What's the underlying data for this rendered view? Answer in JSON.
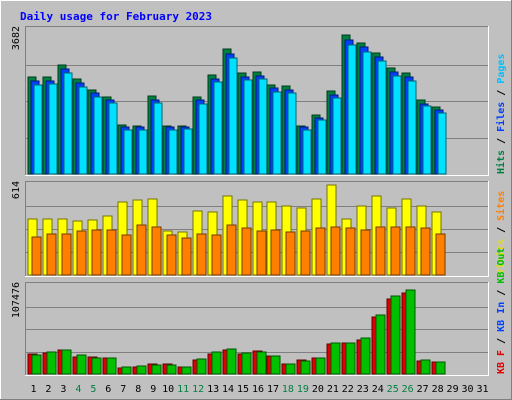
{
  "chart_data": {
    "type": "bar",
    "title": "Daily usage for February 2023",
    "x_labels": [
      "1",
      "2",
      "3",
      "4",
      "5",
      "6",
      "7",
      "8",
      "9",
      "10",
      "11",
      "12",
      "13",
      "14",
      "15",
      "16",
      "17",
      "18",
      "19",
      "20",
      "21",
      "22",
      "23",
      "24",
      "25",
      "26",
      "27",
      "28",
      "29",
      "30",
      "31"
    ],
    "weekend_days": [
      4,
      5,
      11,
      12,
      18,
      19,
      25,
      26
    ],
    "panels": [
      {
        "id": "hits",
        "max_label": "3682",
        "ymax": 3682,
        "axis_labels": [
          {
            "text": "Hits",
            "color": "#008040"
          },
          {
            "text": "Files",
            "color": "#0040ff"
          },
          {
            "text": "Pages",
            "color": "#00c0ff"
          }
        ],
        "series": [
          {
            "name": "Hits",
            "color": "#008040",
            "values": [
              2470,
              2480,
              2790,
              2420,
              2160,
              1980,
              1250,
              1240,
              1990,
              1240,
              1240,
              1970,
              2530,
              3200,
              2580,
              2600,
              2280,
              2240,
              1240,
              1500,
              2110,
              3550,
              3360,
              3100,
              2720,
              2580,
              1890,
              1710,
              0,
              0,
              0
            ]
          },
          {
            "name": "Files",
            "color": "#0040ff",
            "values": [
              2380,
              2390,
              2690,
              2320,
              2060,
              1890,
              1190,
              1190,
              1890,
              1190,
              1190,
              1880,
              2440,
              3080,
              2490,
              2510,
              2190,
              2150,
              1190,
              1440,
              2030,
              3420,
              3240,
              2990,
              2610,
              2480,
              1800,
              1630,
              0,
              0,
              0
            ]
          },
          {
            "name": "Pages",
            "color": "#00e0ff",
            "values": [
              2280,
              2300,
              2580,
              2230,
              1980,
              1810,
              1120,
              1130,
              1810,
              1130,
              1140,
              1800,
              2340,
              2960,
              2400,
              2420,
              2100,
              2070,
              1130,
              1380,
              1950,
              3300,
              3130,
              2890,
              2510,
              2380,
              1730,
              1570,
              0,
              0,
              0
            ]
          }
        ]
      },
      {
        "id": "visits",
        "max_label": "614",
        "ymax": 614,
        "axis_labels": [
          {
            "text": "Visits",
            "color": "#e0e000"
          },
          {
            "text": "Sites",
            "color": "#ff8000"
          }
        ],
        "series": [
          {
            "name": "Visits",
            "color": "#ffff00",
            "values": [
              380,
              380,
              380,
              370,
              375,
              400,
              500,
              510,
              520,
              300,
              290,
              440,
              430,
              540,
              510,
              500,
              500,
              470,
              460,
              520,
              614,
              380,
              470,
              540,
              460,
              520,
              470,
              430,
              0,
              0,
              0
            ]
          },
          {
            "name": "Sites",
            "color": "#ff8000",
            "values": [
              260,
              280,
              280,
              300,
              305,
              310,
              270,
              340,
              330,
              270,
              250,
              280,
              270,
              340,
              320,
              300,
              310,
              290,
              300,
              320,
              330,
              320,
              310,
              330,
              330,
              330,
              320,
              280,
              0,
              0,
              0
            ]
          }
        ]
      },
      {
        "id": "kbytes",
        "max_label": "107476",
        "ymax": 107476,
        "axis_labels": [
          {
            "text": "KB F",
            "color": "#e00000"
          },
          {
            "text": "KB In",
            "color": "#0040ff"
          },
          {
            "text": "KB Out",
            "color": "#00c000"
          }
        ],
        "series": [
          {
            "name": "KB F",
            "color": "#e00000",
            "values": [
              24000,
              26000,
              29000,
              21000,
              21000,
              20000,
              7000,
              9000,
              12000,
              12000,
              9000,
              17000,
              25000,
              29000,
              25000,
              28000,
              22000,
              12000,
              17000,
              20000,
              37000,
              38000,
              42000,
              70000,
              92000,
              99000,
              16000,
              15000,
              0,
              0,
              0
            ]
          },
          {
            "name": "KB Out",
            "color": "#00c000",
            "values": [
              23000,
              27000,
              29000,
              23000,
              20000,
              19000,
              8000,
              10000,
              11000,
              11000,
              9000,
              18000,
              27000,
              30000,
              26000,
              27000,
              22000,
              12000,
              16000,
              20000,
              38000,
              38000,
              44000,
              72000,
              95000,
              102000,
              17000,
              15000,
              0,
              0,
              0
            ]
          }
        ]
      }
    ]
  }
}
